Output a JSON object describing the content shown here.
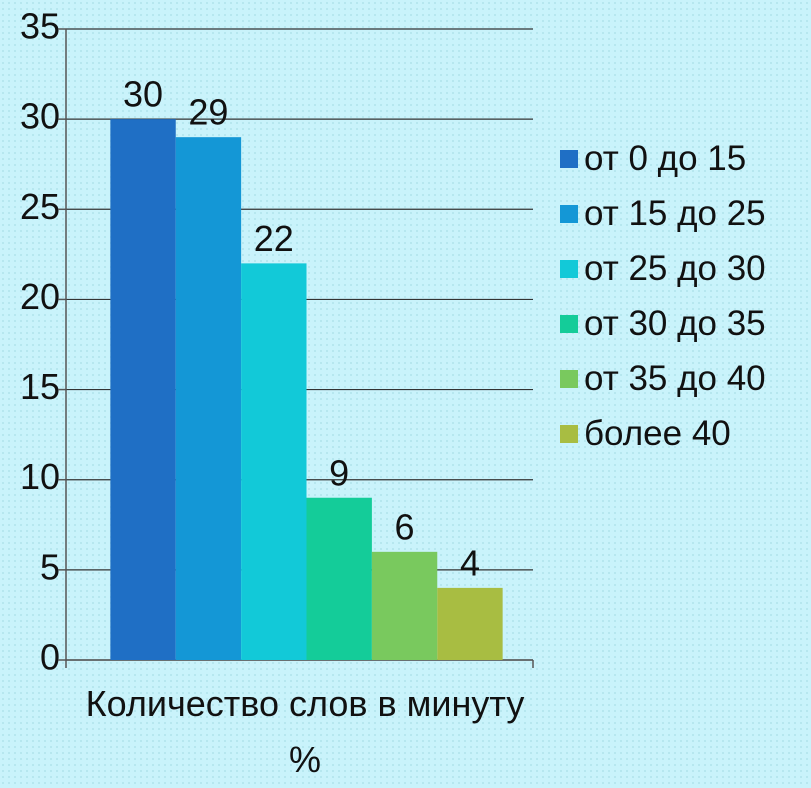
{
  "chart_data": {
    "type": "bar",
    "categories": [
      "Количество слов в минуту %"
    ],
    "series": [
      {
        "name": "от 0 до 15",
        "color": "#1f6fc5",
        "values": [
          30
        ]
      },
      {
        "name": "от 15 до 25",
        "color": "#1497d6",
        "values": [
          29
        ]
      },
      {
        "name": "от 25 до 30",
        "color": "#12c9d8",
        "values": [
          22
        ]
      },
      {
        "name": "от 30 до 35",
        "color": "#14cc99",
        "values": [
          9
        ]
      },
      {
        "name": "от 35 до 40",
        "color": "#79c95e",
        "values": [
          6
        ]
      },
      {
        "name": "более 40",
        "color": "#a8bd42",
        "values": [
          4
        ]
      }
    ],
    "ylim": [
      0,
      35
    ],
    "yticks": [
      0,
      5,
      10,
      15,
      20,
      25,
      30,
      35
    ],
    "grid": true,
    "legend": "right"
  }
}
